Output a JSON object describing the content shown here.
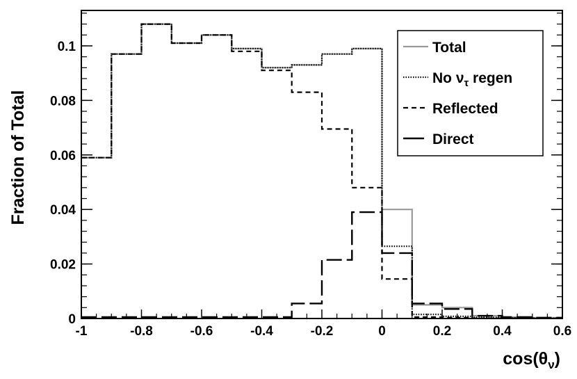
{
  "chart_data": {
    "type": "histogram",
    "xlabel": "cos(θ",
    "xlabel_sub": "ν",
    "xlabel_close": ")",
    "ylabel": "Fraction of Total",
    "xlim": [
      -1,
      0.6
    ],
    "ylim": [
      0,
      0.113
    ],
    "xticks": [
      -1,
      -0.8,
      -0.6,
      -0.4,
      -0.2,
      0,
      0.2,
      0.4,
      0.6
    ],
    "xtick_labels": [
      "-1",
      "-0.8",
      "-0.6",
      "-0.4",
      "-0.2",
      "0",
      "0.2",
      "0.4",
      "0.6"
    ],
    "yticks": [
      0,
      0.02,
      0.04,
      0.06,
      0.08,
      0.1
    ],
    "ytick_labels": [
      "0",
      "0.02",
      "0.04",
      "0.06",
      "0.08",
      "0.1"
    ],
    "grid": false,
    "legend_position": "top-right",
    "bin_edges": [
      -1.0,
      -0.9,
      -0.8,
      -0.7,
      -0.6,
      -0.5,
      -0.4,
      -0.3,
      -0.2,
      -0.1,
      0.0,
      0.1,
      0.2,
      0.3,
      0.4,
      0.5,
      0.6
    ],
    "series": [
      {
        "name": "Total",
        "style": "solid",
        "color": "#999999",
        "values": [
          0.059,
          0.097,
          0.108,
          0.101,
          0.104,
          0.099,
          0.092,
          0.093,
          0.097,
          0.099,
          0.04,
          0.005,
          0.004,
          0.001,
          0.0005,
          0.0003
        ]
      },
      {
        "name": "No ν",
        "name_sub": "τ",
        "name_suffix": " regen",
        "style": "dotted",
        "color": "#000000",
        "values": [
          0.059,
          0.097,
          0.108,
          0.101,
          0.104,
          0.099,
          0.092,
          0.093,
          0.097,
          0.099,
          0.0265,
          0.0015,
          0.0008,
          0.0004,
          0.0002,
          0.0001
        ]
      },
      {
        "name": "Reflected",
        "style": "dashed",
        "color": "#000000",
        "values": [
          0.059,
          0.097,
          0.108,
          0.101,
          0.104,
          0.098,
          0.091,
          0.083,
          0.0695,
          0.048,
          0.0145,
          0.0005,
          0.0003,
          0.0001,
          0.0001,
          0.0001
        ]
      },
      {
        "name": "Direct",
        "style": "longdash",
        "color": "#000000",
        "values": [
          0.0005,
          0.0005,
          0.0005,
          0.0005,
          0.0005,
          0.0005,
          0.0005,
          0.0055,
          0.0215,
          0.039,
          0.024,
          0.0055,
          0.0035,
          0.001,
          0.0005,
          0.0003
        ]
      }
    ]
  }
}
